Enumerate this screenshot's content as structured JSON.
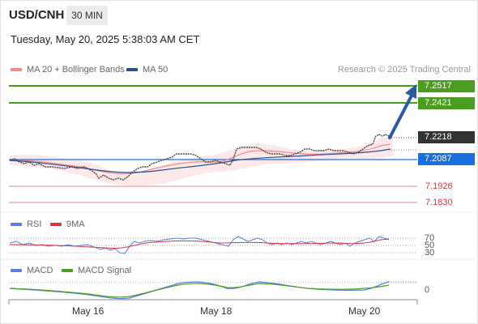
{
  "header": {
    "symbol": "USD/CNH",
    "timeframe": "30 MIN",
    "datetime": "Tuesday, May 20, 2025 5:38:03 AM CET"
  },
  "legend": {
    "ma20_label": "MA 20 + Bollinger Bands",
    "ma50_label": "MA 50",
    "research": "Research © 2025 Trading Central",
    "colors": {
      "ma20": "#f28b8b",
      "ma50": "#2b4d8c"
    }
  },
  "price_levels": [
    {
      "value": "7.2517",
      "kind": "resistance",
      "color": "#4a9e1f"
    },
    {
      "value": "7.2421",
      "kind": "resistance",
      "color": "#4a9e1f"
    },
    {
      "value": "7.2218",
      "kind": "last",
      "color": "#333333"
    },
    {
      "value": "7.2087",
      "kind": "pivot",
      "color": "#1a6fe0"
    },
    {
      "value": "7.1926",
      "kind": "support",
      "color": "#d9363e"
    },
    {
      "value": "7.1830",
      "kind": "support",
      "color": "#d9363e"
    }
  ],
  "rsi": {
    "label": "RSI",
    "ma_label": "9MA",
    "ticks": [
      "70",
      "50",
      "30"
    ],
    "colors": {
      "rsi": "#5b7fe0",
      "ma": "#d9363e"
    }
  },
  "macd": {
    "label": "MACD",
    "signal_label": "MACD Signal",
    "zero_tick": "0",
    "colors": {
      "macd": "#5b7fe0",
      "signal": "#4a9e1f"
    }
  },
  "x_axis": {
    "labels": [
      "May 16",
      "May 18",
      "May 20"
    ]
  }
}
